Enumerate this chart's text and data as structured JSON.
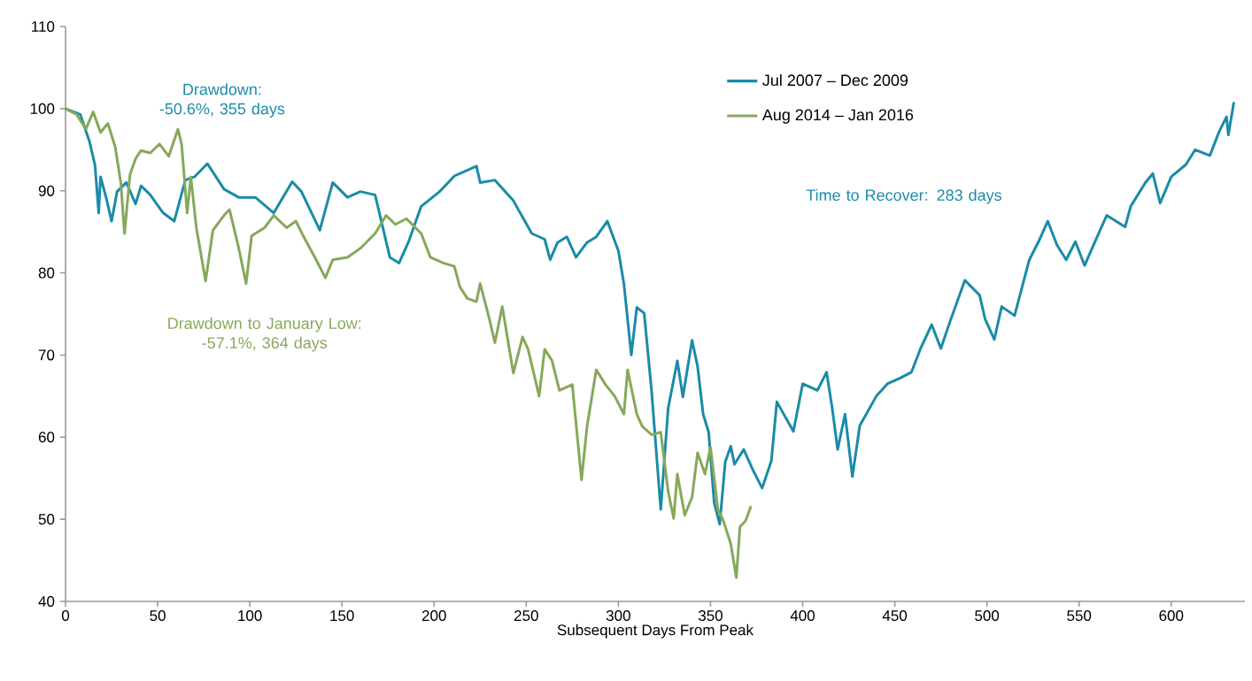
{
  "chart_data": {
    "type": "line",
    "xlabel": "Subsequent Days From Peak",
    "xlim": [
      0,
      640
    ],
    "ylim": [
      40,
      110
    ],
    "xticks": [
      0,
      50,
      100,
      150,
      200,
      250,
      300,
      350,
      400,
      450,
      500,
      550,
      600
    ],
    "yticks": [
      40,
      50,
      60,
      70,
      80,
      90,
      100,
      110
    ],
    "legend": "top right",
    "marker": "none",
    "line_style": "solid",
    "annotations": [
      "Drawdown:\n-50.6%, 355 days",
      "Drawdown to January Low:\n-57.1%, 364 days",
      "Time to Recover: 283 days"
    ],
    "series": [
      {
        "name": "Jul 2007 – Dec 2009",
        "color": "#1a8ba8",
        "x": [
          0,
          8,
          13,
          16,
          18,
          19,
          22,
          25,
          28,
          33,
          38,
          41,
          46,
          53,
          59,
          65,
          70,
          77,
          86,
          94,
          103,
          113,
          123,
          128,
          138,
          145,
          153,
          160,
          168,
          176,
          181,
          186,
          193,
          203,
          211,
          223,
          225,
          233,
          243,
          253,
          260,
          263,
          267,
          272,
          277,
          283,
          288,
          294,
          300,
          303,
          307,
          310,
          314,
          318,
          323,
          327,
          332,
          335,
          340,
          343,
          346,
          349,
          352,
          355,
          358,
          361,
          363,
          368,
          373,
          378,
          383,
          386,
          395,
          400,
          408,
          413,
          416,
          419,
          423,
          427,
          431,
          440,
          446,
          453,
          459,
          464,
          470,
          475,
          480,
          488,
          496,
          499,
          504,
          508,
          515,
          523,
          528,
          533,
          538,
          543,
          548,
          553,
          560,
          565,
          575,
          578,
          586,
          590,
          594,
          600,
          608,
          613,
          621,
          626,
          630,
          631,
          634
        ],
        "values": [
          100,
          99.3,
          96,
          93.1,
          87.3,
          91.7,
          89.2,
          86.3,
          89.9,
          91,
          88.4,
          90.6,
          89.5,
          87.3,
          86.3,
          91.3,
          91.7,
          93.3,
          90.2,
          89.2,
          89.2,
          87.3,
          91.1,
          89.9,
          85.2,
          91,
          89.2,
          89.9,
          89.5,
          81.9,
          81.2,
          83.7,
          88.1,
          89.9,
          91.8,
          93,
          91,
          91.3,
          88.8,
          84.8,
          84.1,
          81.6,
          83.7,
          84.4,
          81.9,
          83.7,
          84.4,
          86.3,
          82.7,
          78.7,
          70,
          75.8,
          75.1,
          65.7,
          51.2,
          63.5,
          69.3,
          64.9,
          71.8,
          68.6,
          62.8,
          60.6,
          52,
          49.4,
          57,
          58.9,
          56.7,
          58.5,
          56,
          53.8,
          57.1,
          64.3,
          60.7,
          66.5,
          65.7,
          67.9,
          63.6,
          58.5,
          62.8,
          55.2,
          61.4,
          65,
          66.5,
          67.2,
          67.9,
          70.8,
          73.7,
          70.8,
          74.1,
          79.1,
          77.3,
          74.4,
          71.9,
          75.9,
          74.8,
          81.6,
          83.8,
          86.3,
          83.4,
          81.6,
          83.8,
          80.9,
          84.5,
          87,
          85.6,
          88.1,
          91,
          92.1,
          88.5,
          91.7,
          93.2,
          95,
          94.3,
          97.2,
          99,
          96.8,
          100.8
        ]
      },
      {
        "name": "Aug 2014 – Jan 2016",
        "color": "#86a85a",
        "x": [
          0,
          6,
          11,
          15,
          19,
          23,
          27,
          30,
          32,
          35,
          38,
          41,
          46,
          51,
          56,
          61,
          63,
          66,
          68,
          71,
          76,
          80,
          86,
          89,
          94,
          98,
          101,
          103,
          108,
          113,
          120,
          125,
          129,
          136,
          141,
          145,
          153,
          160,
          168,
          174,
          179,
          185,
          193,
          198,
          205,
          211,
          214,
          218,
          223,
          225,
          230,
          233,
          237,
          243,
          248,
          251,
          257,
          260,
          264,
          268,
          275,
          280,
          283,
          288,
          293,
          298,
          303,
          305,
          310,
          313,
          318,
          323,
          327,
          330,
          332,
          336,
          340,
          343,
          347,
          350,
          354,
          357,
          361,
          364,
          366,
          369,
          372
        ],
        "values": [
          100,
          99.3,
          97.5,
          99.6,
          97.1,
          98.2,
          95.3,
          91,
          84.8,
          92,
          93.9,
          94.9,
          94.6,
          95.7,
          94.2,
          97.5,
          95.7,
          87.3,
          91.7,
          85.5,
          79,
          85.2,
          87,
          87.7,
          83,
          78.7,
          84.5,
          84.8,
          85.5,
          87,
          85.5,
          86.3,
          84.5,
          81.6,
          79.4,
          81.6,
          81.9,
          83,
          84.8,
          87,
          85.9,
          86.6,
          84.8,
          81.9,
          81.2,
          80.8,
          78.3,
          76.9,
          76.5,
          78.7,
          74.4,
          71.5,
          75.9,
          67.8,
          72.2,
          70.7,
          65,
          70.7,
          69.3,
          65.7,
          66.4,
          54.8,
          61.3,
          68.2,
          66.4,
          65,
          62.8,
          68.2,
          62.8,
          61.3,
          60.3,
          60.6,
          53.4,
          50.1,
          55.5,
          50.5,
          52.7,
          58.1,
          55.5,
          58.8,
          51.2,
          49.8,
          47,
          42.9,
          49.1,
          49.8,
          51.6
        ]
      }
    ]
  }
}
